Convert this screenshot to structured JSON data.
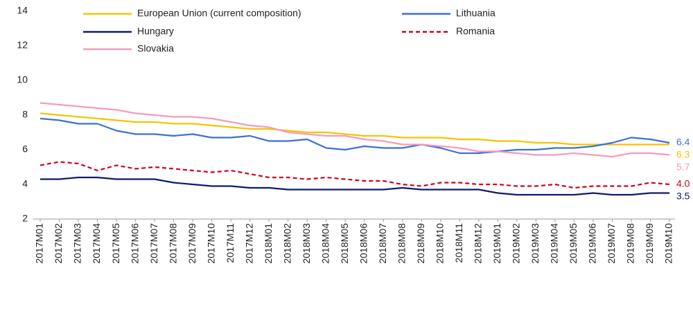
{
  "chart_data": {
    "type": "line",
    "categories": [
      "2017M01",
      "2017M02",
      "2017M03",
      "2017M04",
      "2017M05",
      "2017M06",
      "2017M07",
      "2017M08",
      "2017M09",
      "2017M10",
      "2017M11",
      "2017M12",
      "2018M01",
      "2018M02",
      "2018M03",
      "2018M04",
      "2018M05",
      "2018M06",
      "2018M07",
      "2018M08",
      "2018M09",
      "2018M10",
      "2018M11",
      "2018M12",
      "2019M01",
      "2019M02",
      "2019M03",
      "2019M04",
      "2019M05",
      "2019M06",
      "2019M07",
      "2019M08",
      "2019M09",
      "2019M10"
    ],
    "ylim": [
      2,
      14
    ],
    "yticks": [
      2,
      4,
      6,
      8,
      10,
      12,
      14
    ],
    "grid": false,
    "series": [
      {
        "name": "European Union (current composition)",
        "color": "#f5c400",
        "style": "solid",
        "values": [
          8.1,
          8.0,
          7.9,
          7.8,
          7.7,
          7.6,
          7.6,
          7.5,
          7.5,
          7.4,
          7.3,
          7.2,
          7.2,
          7.1,
          7.0,
          7.0,
          6.9,
          6.8,
          6.8,
          6.7,
          6.7,
          6.7,
          6.6,
          6.6,
          6.5,
          6.5,
          6.4,
          6.4,
          6.3,
          6.3,
          6.3,
          6.3,
          6.3,
          6.3
        ],
        "value_labels": [
          null,
          null,
          null,
          null,
          null,
          null,
          null,
          null,
          null,
          null,
          null,
          null,
          null,
          null,
          null,
          null,
          null,
          null,
          null,
          null,
          null,
          null,
          null,
          null,
          null,
          null,
          null,
          null,
          null,
          null,
          null,
          null,
          null,
          "6.3"
        ]
      },
      {
        "name": "Lithuania",
        "color": "#3a6fd8",
        "style": "solid",
        "values": [
          7.8,
          7.7,
          7.5,
          7.5,
          7.1,
          6.9,
          6.9,
          6.8,
          6.9,
          6.7,
          6.7,
          6.8,
          6.5,
          6.5,
          6.6,
          6.1,
          6.0,
          6.2,
          6.1,
          6.1,
          6.3,
          6.1,
          5.8,
          5.8,
          5.9,
          6.0,
          6.0,
          6.1,
          6.1,
          6.2,
          6.4,
          6.7,
          6.6,
          6.4
        ],
        "value_labels": [
          null,
          null,
          null,
          null,
          null,
          null,
          null,
          null,
          null,
          null,
          null,
          null,
          null,
          null,
          null,
          null,
          null,
          null,
          null,
          null,
          null,
          null,
          null,
          null,
          null,
          null,
          null,
          null,
          null,
          null,
          null,
          null,
          null,
          "6.4"
        ]
      },
      {
        "name": "Hungary",
        "color": "#0c1a6b",
        "style": "solid",
        "values": [
          4.3,
          4.3,
          4.4,
          4.4,
          4.3,
          4.3,
          4.3,
          4.1,
          4.0,
          3.9,
          3.9,
          3.8,
          3.8,
          3.7,
          3.7,
          3.7,
          3.7,
          3.7,
          3.7,
          3.8,
          3.7,
          3.7,
          3.7,
          3.7,
          3.5,
          3.4,
          3.4,
          3.4,
          3.4,
          3.5,
          3.4,
          3.4,
          3.5,
          3.5
        ],
        "value_labels": [
          null,
          null,
          null,
          null,
          null,
          null,
          null,
          null,
          null,
          null,
          null,
          null,
          null,
          null,
          null,
          null,
          null,
          null,
          null,
          null,
          null,
          null,
          null,
          null,
          null,
          null,
          null,
          null,
          null,
          null,
          null,
          null,
          null,
          "3.5"
        ]
      },
      {
        "name": "Romania",
        "color": "#d0021b",
        "style": "dashed",
        "values": [
          5.1,
          5.3,
          5.2,
          4.8,
          5.1,
          4.9,
          5.0,
          4.9,
          4.8,
          4.7,
          4.8,
          4.6,
          4.4,
          4.4,
          4.3,
          4.4,
          4.3,
          4.2,
          4.2,
          4.0,
          3.9,
          4.1,
          4.1,
          4.0,
          4.0,
          3.9,
          3.9,
          4.0,
          3.8,
          3.9,
          3.9,
          3.9,
          4.1,
          4.0
        ],
        "value_labels": [
          null,
          null,
          null,
          null,
          null,
          null,
          null,
          null,
          null,
          null,
          null,
          null,
          null,
          null,
          null,
          null,
          null,
          null,
          null,
          null,
          null,
          null,
          null,
          null,
          null,
          null,
          null,
          null,
          null,
          null,
          null,
          null,
          null,
          "4.0"
        ]
      },
      {
        "name": "Slovakia",
        "color": "#f49ac1",
        "style": "solid",
        "values": [
          8.7,
          8.6,
          8.5,
          8.4,
          8.3,
          8.1,
          8.0,
          7.9,
          7.9,
          7.8,
          7.6,
          7.4,
          7.3,
          7.0,
          6.9,
          6.8,
          6.8,
          6.6,
          6.5,
          6.3,
          6.3,
          6.2,
          6.1,
          5.9,
          5.9,
          5.8,
          5.7,
          5.7,
          5.8,
          5.7,
          5.6,
          5.8,
          5.8,
          5.7
        ],
        "value_labels": [
          null,
          null,
          null,
          null,
          null,
          null,
          null,
          null,
          null,
          null,
          null,
          null,
          null,
          null,
          null,
          null,
          null,
          null,
          null,
          null,
          null,
          null,
          null,
          null,
          null,
          null,
          null,
          null,
          null,
          null,
          null,
          null,
          null,
          "5.7"
        ]
      }
    ]
  }
}
